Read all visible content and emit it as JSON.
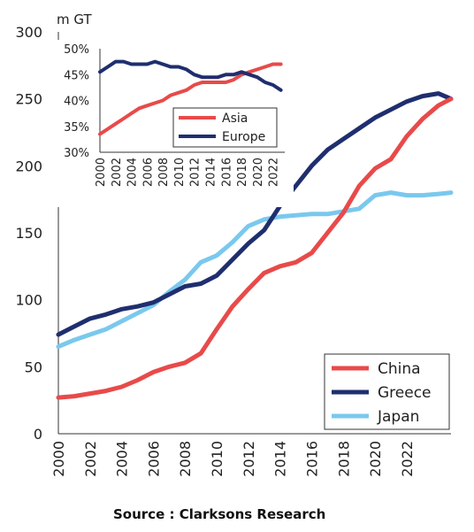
{
  "source_text": "Source : Clarksons Research",
  "chart_data": [
    {
      "type": "line",
      "title": "",
      "unit_label": "m GT",
      "xlabel": "",
      "ylabel": "",
      "x_ticks": [
        "2000",
        "2002",
        "2004",
        "2006",
        "2008",
        "2010",
        "2012",
        "2014",
        "2016",
        "2018",
        "2020",
        "2022"
      ],
      "y_ticks": [
        "0",
        "50",
        "100",
        "150",
        "200",
        "250",
        "300"
      ],
      "xlim": [
        2000,
        2024.8
      ],
      "ylim": [
        0,
        300
      ],
      "grid": false,
      "legend_position": "bottom-right",
      "series": [
        {
          "name": "China",
          "color": "#e84a4a",
          "x": [
            2000,
            2001,
            2002,
            2003,
            2004,
            2005,
            2006,
            2007,
            2008,
            2009,
            2010,
            2011,
            2012,
            2013,
            2014,
            2015,
            2016,
            2017,
            2018,
            2019,
            2020,
            2021,
            2022,
            2023,
            2024,
            2024.8
          ],
          "y": [
            27,
            28,
            30,
            32,
            35,
            40,
            46,
            50,
            53,
            60,
            78,
            95,
            108,
            120,
            125,
            128,
            135,
            150,
            165,
            185,
            198,
            205,
            222,
            235,
            245,
            250
          ]
        },
        {
          "name": "Greece",
          "color": "#1f2e6e",
          "x": [
            2000,
            2001,
            2002,
            2003,
            2004,
            2005,
            2006,
            2007,
            2008,
            2009,
            2010,
            2011,
            2012,
            2013,
            2014,
            2015,
            2016,
            2017,
            2018,
            2019,
            2020,
            2021,
            2022,
            2023,
            2024,
            2024.8
          ],
          "y": [
            74,
            80,
            86,
            89,
            93,
            95,
            98,
            104,
            110,
            112,
            118,
            130,
            142,
            152,
            170,
            185,
            200,
            212,
            220,
            228,
            236,
            242,
            248,
            252,
            254,
            250
          ]
        },
        {
          "name": "Japan",
          "color": "#7ac8ee",
          "x": [
            2000,
            2001,
            2002,
            2003,
            2004,
            2005,
            2006,
            2007,
            2008,
            2009,
            2010,
            2011,
            2012,
            2013,
            2014,
            2015,
            2016,
            2017,
            2018,
            2019,
            2020,
            2021,
            2022,
            2023,
            2024,
            2024.8
          ],
          "y": [
            65,
            70,
            74,
            78,
            84,
            90,
            96,
            106,
            115,
            128,
            133,
            143,
            155,
            160,
            162,
            163,
            164,
            164,
            166,
            168,
            178,
            180,
            178,
            178,
            179,
            180
          ]
        }
      ]
    },
    {
      "type": "line",
      "title": "",
      "xlabel": "",
      "ylabel": "",
      "x_ticks": [
        "2000",
        "2002",
        "2004",
        "2006",
        "2008",
        "2010",
        "2012",
        "2014",
        "2016",
        "2018",
        "2020",
        "2022"
      ],
      "y_ticks": [
        "30%",
        "35%",
        "40%",
        "45%",
        "50%"
      ],
      "xlim": [
        2000,
        2023.5
      ],
      "ylim": [
        30,
        50
      ],
      "grid": false,
      "legend_position": "bottom-center",
      "series": [
        {
          "name": "Asia",
          "color": "#e84a4a",
          "x": [
            2000,
            2001,
            2002,
            2003,
            2004,
            2005,
            2006,
            2007,
            2008,
            2009,
            2010,
            2011,
            2012,
            2013,
            2014,
            2015,
            2016,
            2017,
            2018,
            2019,
            2020,
            2021,
            2022,
            2023
          ],
          "y": [
            33.5,
            34.5,
            35.5,
            36.5,
            37.5,
            38.5,
            39,
            39.5,
            40,
            41,
            41.5,
            42,
            43,
            43.5,
            43.5,
            43.5,
            43.5,
            44,
            45,
            45.5,
            46,
            46.5,
            47,
            47
          ]
        },
        {
          "name": "Europe",
          "color": "#1f2e6e",
          "x": [
            2000,
            2001,
            2002,
            2003,
            2004,
            2005,
            2006,
            2007,
            2008,
            2009,
            2010,
            2011,
            2012,
            2013,
            2014,
            2015,
            2016,
            2017,
            2018,
            2019,
            2020,
            2021,
            2022,
            2023
          ],
          "y": [
            45.5,
            46.5,
            47.5,
            47.5,
            47,
            47,
            47,
            47.5,
            47,
            46.5,
            46.5,
            46,
            45,
            44.5,
            44.5,
            44.5,
            45,
            45,
            45.5,
            45,
            44.5,
            43.5,
            43,
            42
          ]
        }
      ]
    }
  ]
}
